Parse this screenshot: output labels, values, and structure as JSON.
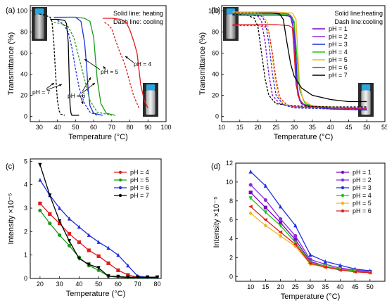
{
  "chart_data": [
    {
      "panel": "(a)",
      "type": "line",
      "xlabel": "Temperature (°C)",
      "ylabel": "Transmittance (%)",
      "xlim": [
        25,
        100
      ],
      "ylim": [
        -5,
        105
      ],
      "xticks": [
        30,
        40,
        50,
        60,
        70,
        80,
        90,
        100
      ],
      "yticks": [
        0,
        20,
        40,
        60,
        80,
        100
      ],
      "legend": {
        "position": "top-right",
        "lines": [
          "Solid line: heating",
          "Dash line: cooling"
        ]
      },
      "annotations": [
        "pH = 7",
        "pH = 6",
        "pH = 5",
        "pH = 4"
      ],
      "series": [
        {
          "name": "pH = 7 heating",
          "color": "#000000",
          "dash": false,
          "x": [
            36,
            40,
            44,
            45,
            46,
            46.6,
            47,
            47.5,
            48,
            49,
            52
          ],
          "y": [
            92,
            92,
            91,
            88,
            70,
            30,
            10,
            3,
            1,
            1,
            1
          ]
        },
        {
          "name": "pH = 7 cooling",
          "color": "#000000",
          "dash": true,
          "x": [
            30,
            33,
            36,
            37,
            38,
            39,
            40,
            41,
            42,
            44
          ],
          "y": [
            97,
            96,
            94,
            90,
            70,
            40,
            15,
            5,
            2,
            1
          ]
        },
        {
          "name": "pH = 6 heating",
          "color": "#1f2fe0",
          "dash": false,
          "x": [
            38,
            45,
            50,
            53,
            55,
            56,
            57,
            58,
            60,
            65
          ],
          "y": [
            94,
            94,
            94,
            90,
            70,
            50,
            25,
            10,
            3,
            1
          ]
        },
        {
          "name": "pH = 6 cooling",
          "color": "#1f2fe0",
          "dash": true,
          "x": [
            40,
            43,
            46,
            48,
            50,
            52,
            55,
            58,
            62
          ],
          "y": [
            91,
            88,
            80,
            65,
            45,
            27,
            12,
            4,
            1
          ]
        },
        {
          "name": "pH = 5 heating",
          "color": "#1a9e1a",
          "dash": false,
          "x": [
            45,
            50,
            55,
            58,
            60,
            61,
            62,
            64,
            67,
            72
          ],
          "y": [
            94,
            94,
            93,
            90,
            75,
            55,
            35,
            12,
            3,
            1
          ]
        },
        {
          "name": "pH = 5 cooling",
          "color": "#1a9e1a",
          "dash": true,
          "x": [
            38,
            42,
            46,
            49,
            52,
            55,
            58,
            62,
            70
          ],
          "y": [
            89,
            88,
            85,
            75,
            55,
            35,
            15,
            4,
            1
          ]
        },
        {
          "name": "pH = 4 heating",
          "color": "#e41a1c",
          "dash": false,
          "x": [
            65,
            70,
            75,
            78,
            80,
            82,
            84,
            85,
            86,
            88,
            90
          ],
          "y": [
            93,
            93,
            92,
            89,
            82,
            72,
            60,
            45,
            30,
            15,
            8
          ]
        },
        {
          "name": "pH = 4 cooling",
          "color": "#e41a1c",
          "dash": true,
          "x": [
            66,
            68,
            70,
            72,
            74,
            76,
            78,
            80,
            82,
            85
          ],
          "y": [
            89,
            87,
            83,
            73,
            63,
            55,
            45,
            32,
            20,
            8
          ]
        }
      ]
    },
    {
      "panel": "(b)",
      "type": "line",
      "xlabel": "Temperature (°C)",
      "ylabel": "Transmittance (%)",
      "xlim": [
        10,
        55
      ],
      "ylim": [
        -5,
        105
      ],
      "xticks": [
        10,
        15,
        20,
        25,
        30,
        35,
        40,
        45,
        50,
        55
      ],
      "yticks": [
        0,
        20,
        40,
        60,
        80,
        100
      ],
      "legend": {
        "position": "top-right",
        "lines": [
          "Solid line:heating",
          "Dash line:cooling"
        ]
      },
      "series": [
        {
          "name": "pH = 1",
          "color": "#7b00c8",
          "dash": false,
          "x": [
            13,
            20,
            25,
            28,
            29,
            30,
            30.5,
            31,
            32,
            35,
            40,
            50
          ],
          "y": [
            97,
            97,
            97,
            96,
            94,
            80,
            40,
            20,
            12,
            9,
            8,
            7
          ]
        },
        {
          "name": "pH = 2",
          "color": "#8a2be2",
          "dash": false,
          "x": [
            13,
            20,
            25,
            28.5,
            29.5,
            30.2,
            30.8,
            31.5,
            33,
            40,
            50
          ],
          "y": [
            98,
            98,
            98,
            97,
            94,
            60,
            30,
            16,
            10,
            8,
            7
          ]
        },
        {
          "name": "pH = 3",
          "color": "#1f2fe0",
          "dash": false,
          "x": [
            13,
            20,
            25,
            29,
            30,
            30.6,
            31,
            32,
            34,
            40,
            50
          ],
          "y": [
            96,
            96,
            96,
            95,
            88,
            50,
            22,
            12,
            9,
            7,
            6
          ]
        },
        {
          "name": "pH = 4",
          "color": "#22c21a",
          "dash": false,
          "x": [
            13,
            20,
            25,
            29,
            30,
            30.8,
            31.5,
            33,
            36,
            40,
            50
          ],
          "y": [
            97,
            97,
            97,
            96,
            90,
            55,
            25,
            12,
            9,
            8,
            7
          ]
        },
        {
          "name": "pH = 5",
          "color": "#f2b51c",
          "dash": false,
          "x": [
            13,
            20,
            25,
            29.5,
            30.5,
            31,
            31.5,
            32.5,
            35,
            40,
            50
          ],
          "y": [
            99,
            99,
            99,
            98,
            92,
            60,
            30,
            15,
            10,
            9,
            8
          ]
        },
        {
          "name": "pH = 6",
          "color": "#e41a1c",
          "dash": false,
          "x": [
            13,
            20,
            25,
            28.5,
            29.5,
            30,
            30.5,
            31.5,
            33,
            40,
            50
          ],
          "y": [
            87,
            87,
            87,
            86,
            84,
            60,
            30,
            15,
            10,
            8,
            7
          ]
        },
        {
          "name": "pH = 7",
          "color": "#000000",
          "dash": false,
          "x": [
            13,
            20,
            24,
            26,
            27,
            28,
            29,
            30,
            32,
            35,
            40,
            45,
            50
          ],
          "y": [
            98,
            98,
            98,
            97,
            92,
            70,
            50,
            38,
            27,
            20,
            16,
            14,
            14
          ]
        },
        {
          "name": "pH = 7 cooling",
          "color": "#000000",
          "dash": true,
          "x": [
            13,
            17,
            19,
            20,
            21,
            22,
            23,
            25,
            30,
            40,
            50
          ],
          "y": [
            97,
            96,
            93,
            85,
            60,
            35,
            20,
            12,
            10,
            9,
            9
          ]
        },
        {
          "name": "pH = 1 cooling",
          "color": "#7b00c8",
          "dash": true,
          "x": [
            13,
            18,
            20,
            21,
            22,
            23,
            24,
            26,
            30,
            40,
            50
          ],
          "y": [
            96,
            96,
            95,
            90,
            70,
            40,
            20,
            12,
            9,
            8,
            7
          ]
        },
        {
          "name": "pH = 3 cooling",
          "color": "#1f2fe0",
          "dash": true,
          "x": [
            13,
            19,
            21,
            22,
            23,
            24,
            25,
            27,
            30,
            40,
            50
          ],
          "y": [
            96,
            96,
            95,
            90,
            70,
            40,
            20,
            11,
            8,
            7,
            6
          ]
        },
        {
          "name": "pH = 5 cooling",
          "color": "#f2b51c",
          "dash": true,
          "x": [
            13,
            19,
            21,
            22.5,
            23.5,
            24.5,
            25.5,
            27,
            30,
            40,
            50
          ],
          "y": [
            98,
            98,
            97,
            90,
            70,
            40,
            20,
            12,
            9,
            8,
            8
          ]
        },
        {
          "name": "pH = 6 cooling",
          "color": "#e41a1c",
          "dash": true,
          "x": [
            13,
            20,
            22,
            23,
            24,
            25,
            26,
            28,
            30,
            40,
            50
          ],
          "y": [
            86,
            86,
            85,
            80,
            60,
            35,
            18,
            11,
            9,
            8,
            8
          ]
        }
      ]
    },
    {
      "panel": "(c)",
      "type": "line",
      "xlabel": "Temperature (°C)",
      "ylabel": "Intensity ×10⁻⁵",
      "xlim": [
        15,
        82
      ],
      "ylim": [
        0,
        5.1
      ],
      "xticks": [
        20,
        30,
        40,
        50,
        60,
        70,
        80
      ],
      "yticks": [
        0,
        1,
        2,
        3,
        4,
        5
      ],
      "legend": {
        "position": "top-right"
      },
      "series": [
        {
          "name": "pH = 4",
          "color": "#e41a1c",
          "marker": "square",
          "x": [
            20,
            25,
            30,
            35,
            40,
            45,
            50,
            55,
            60,
            65,
            70,
            75,
            80
          ],
          "y": [
            3.2,
            2.75,
            2.35,
            1.9,
            1.55,
            1.2,
            0.95,
            0.65,
            0.35,
            0.15,
            0.05,
            0.05,
            0.05
          ]
        },
        {
          "name": "pH = 5",
          "color": "#1a9e1a",
          "marker": "circle",
          "x": [
            20,
            25,
            30,
            35,
            40,
            45,
            50,
            55,
            60,
            65,
            70,
            75,
            80
          ],
          "y": [
            2.9,
            2.35,
            1.85,
            1.4,
            0.9,
            0.55,
            0.35,
            0.1,
            0.05,
            0.03,
            0.03,
            0.03,
            0.03
          ]
        },
        {
          "name": "pH = 6",
          "color": "#1f2fe0",
          "marker": "triangle",
          "x": [
            20,
            25,
            30,
            35,
            40,
            45,
            50,
            55,
            60,
            65,
            70,
            75,
            80
          ],
          "y": [
            4.2,
            3.55,
            3.0,
            2.55,
            2.2,
            1.85,
            1.55,
            1.3,
            1.0,
            0.55,
            0.1,
            0.05,
            0.05
          ]
        },
        {
          "name": "pH = 7",
          "color": "#000000",
          "marker": "triangle-down",
          "x": [
            20,
            25,
            30,
            35,
            40,
            45,
            50,
            55,
            60,
            65,
            70,
            75,
            80
          ],
          "y": [
            4.85,
            3.55,
            2.45,
            1.6,
            0.85,
            0.6,
            0.45,
            0.1,
            0.08,
            0.05,
            0.05,
            0.05,
            0.05
          ]
        }
      ]
    },
    {
      "panel": "(d)",
      "type": "line",
      "xlabel": "Temperature (°C)",
      "ylabel": "Intensity ×10⁻⁵",
      "xlim": [
        5,
        55
      ],
      "ylim": [
        -0.5,
        12
      ],
      "xticks": [
        10,
        15,
        20,
        25,
        30,
        35,
        40,
        45,
        50
      ],
      "yticks": [
        0,
        2,
        4,
        6,
        8,
        10,
        12
      ],
      "legend": {
        "position": "top-right"
      },
      "series": [
        {
          "name": "pH = 1",
          "color": "#7b00c8",
          "marker": "square",
          "x": [
            10,
            15,
            20,
            25,
            30,
            35,
            40,
            45,
            50
          ],
          "y": [
            8.9,
            7.3,
            5.7,
            3.9,
            1.6,
            1.1,
            0.8,
            0.6,
            0.5
          ]
        },
        {
          "name": "pH = 2",
          "color": "#8a2be2",
          "marker": "circle",
          "x": [
            10,
            15,
            20,
            25,
            30,
            35,
            40,
            45,
            50
          ],
          "y": [
            9.7,
            8.1,
            6.1,
            4.3,
            1.8,
            1.3,
            0.9,
            0.7,
            0.5
          ]
        },
        {
          "name": "pH = 3",
          "color": "#1f2fe0",
          "marker": "triangle",
          "x": [
            10,
            15,
            20,
            25,
            30,
            35,
            40,
            45,
            50
          ],
          "y": [
            11.1,
            9.6,
            7.4,
            5.4,
            2.3,
            1.6,
            1.2,
            0.8,
            0.6
          ]
        },
        {
          "name": "pH = 4",
          "color": "#22c21a",
          "marker": "triangle-down",
          "x": [
            10,
            15,
            20,
            25,
            30,
            35,
            40,
            45,
            50
          ],
          "y": [
            8.3,
            6.8,
            5.4,
            3.6,
            1.5,
            1.1,
            0.8,
            0.6,
            0.4
          ]
        },
        {
          "name": "pH = 5",
          "color": "#f2b51c",
          "marker": "diamond",
          "x": [
            10,
            15,
            20,
            25,
            30,
            35,
            40,
            45,
            50
          ],
          "y": [
            6.7,
            5.4,
            4.3,
            3.2,
            1.3,
            1.0,
            0.7,
            0.5,
            0.4
          ]
        },
        {
          "name": "pH = 6",
          "color": "#e41a1c",
          "marker": "triangle-left",
          "x": [
            10,
            15,
            20,
            25,
            30,
            35,
            40,
            45,
            50
          ],
          "y": [
            7.4,
            6.0,
            4.7,
            3.4,
            1.4,
            1.0,
            0.7,
            0.5,
            0.4
          ]
        }
      ]
    }
  ]
}
